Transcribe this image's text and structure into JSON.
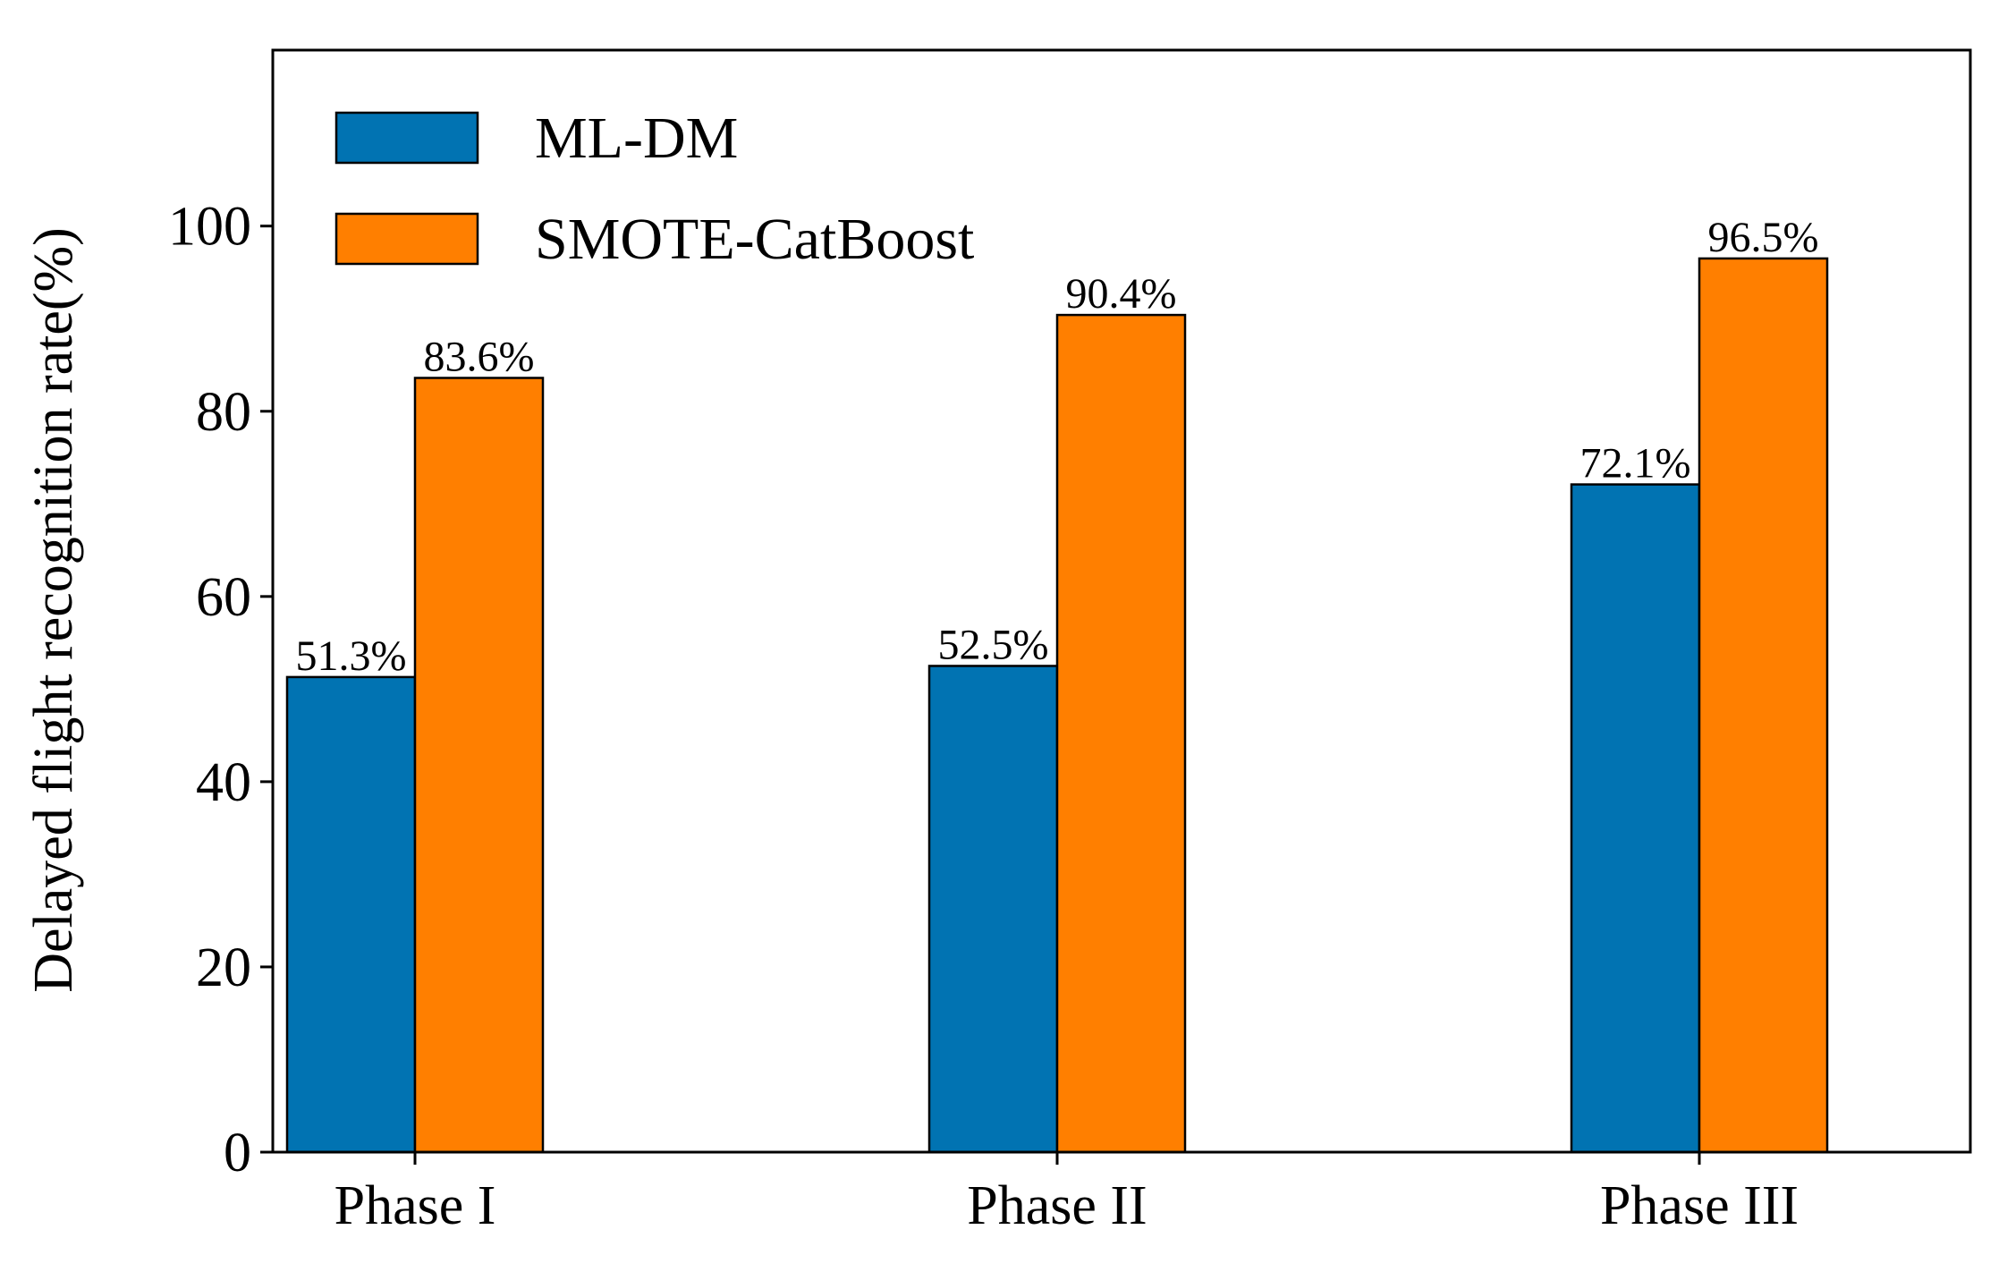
{
  "chart_data": {
    "type": "bar",
    "title": "",
    "xlabel": "",
    "ylabel": "Delayed flight recognition rate(%)",
    "categories": [
      "Phase I",
      "Phase II",
      "Phase III"
    ],
    "ylim": [
      0,
      119
    ],
    "yticks": [
      0,
      20,
      40,
      60,
      80,
      100
    ],
    "grid": false,
    "legend_position": "top-left",
    "series": [
      {
        "name": "ML-DM",
        "color": "#0173b2",
        "values": [
          51.3,
          52.5,
          72.1
        ],
        "labels": [
          "51.3%",
          "52.5%",
          "72.1%"
        ]
      },
      {
        "name": "SMOTE-CatBoost",
        "color": "#ff7f00",
        "values": [
          83.6,
          90.4,
          96.5
        ],
        "labels": [
          "83.6%",
          "90.4%",
          "96.5%"
        ]
      }
    ]
  }
}
